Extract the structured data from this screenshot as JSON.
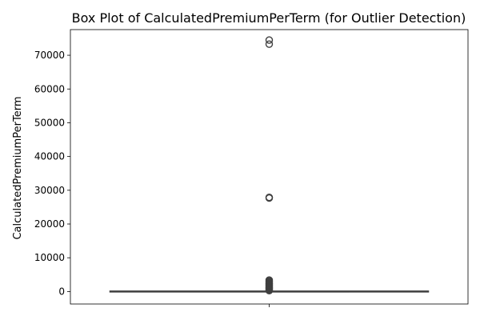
{
  "chart_data": {
    "type": "box",
    "title": "Box Plot of CalculatedPremiumPerTerm (for Outlier Detection)",
    "xlabel": "",
    "ylabel": "CalculatedPremiumPerTerm",
    "ylim": [
      -3700,
      77600
    ],
    "yticks": [
      0,
      10000,
      20000,
      30000,
      40000,
      50000,
      60000,
      70000
    ],
    "grid": false,
    "box": {
      "whisker_low": 0,
      "q1": 0,
      "median": 0,
      "q3": 0,
      "whisker_high": 0
    },
    "outliers": [
      74500,
      73300,
      27900,
      27700,
      3400,
      3100,
      2900,
      2600,
      2400,
      2200,
      2000,
      1800,
      1600,
      1400,
      1200,
      1000,
      800,
      600,
      400,
      250
    ],
    "colors": {
      "box_edge": "#3f3f3f",
      "box_fill": "#1f77b4",
      "outlier_edge": "#3f3f3f",
      "axis": "#000000"
    }
  }
}
